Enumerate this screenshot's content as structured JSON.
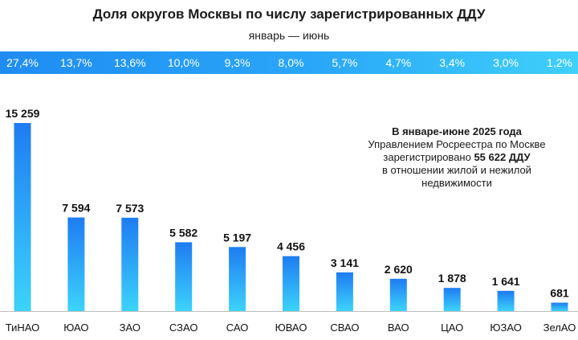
{
  "chart_data": {
    "type": "bar",
    "title": "Доля округов Москвы по числу зарегистрированных ДДУ",
    "subtitle": "январь — июнь",
    "categories": [
      "ТиНАО",
      "ЮАО",
      "ЗАО",
      "СЗАО",
      "САО",
      "ЮВАО",
      "СВАО",
      "ВАО",
      "ЦАО",
      "ЮЗАО",
      "ЗелАО"
    ],
    "values": [
      15259,
      7594,
      7573,
      5582,
      5197,
      4456,
      3141,
      2620,
      1878,
      1641,
      681
    ],
    "value_labels": [
      "15 259",
      "7 594",
      "7 573",
      "5 582",
      "5 197",
      "4 456",
      "3 141",
      "2 620",
      "1 878",
      "1 641",
      "681"
    ],
    "shares": [
      "27,4%",
      "13,7%",
      "13,6%",
      "10,0%",
      "9,3%",
      "8,0%",
      "5,7%",
      "4,7%",
      "3,4%",
      "3,0%",
      "1,2%"
    ],
    "ylim": [
      0,
      15259
    ],
    "grid": false,
    "legend": "none",
    "colors": {
      "bar_top": "#1e7cf2",
      "bar_bottom": "#3cd3fb",
      "baseline": "#bdbdbd",
      "band_left": "#1f8cf3",
      "band_right": "#3fd0fb"
    }
  },
  "annotation": {
    "line1": "В январе-июне 2025 года",
    "line2": "Управлением Росреестра по Москве",
    "line3_prefix": "зарегистрировано ",
    "line3_bold": "55 622 ДДУ",
    "line4": "в отношении жилой и нежилой",
    "line5": "недвижимости"
  }
}
